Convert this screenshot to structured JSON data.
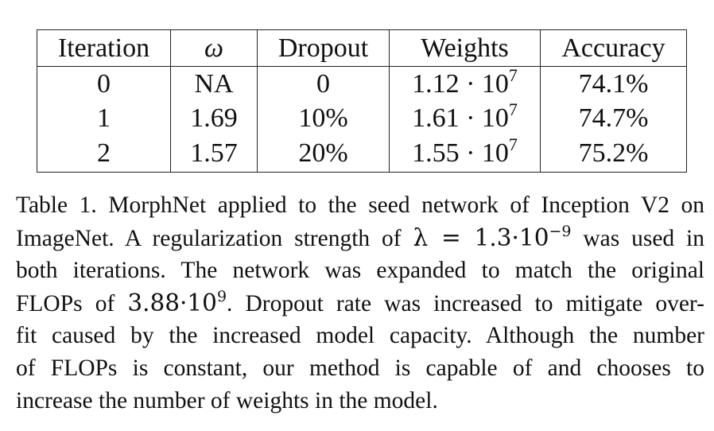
{
  "table": {
    "headers": [
      "Iteration",
      "ω",
      "Dropout",
      "Weights",
      "Accuracy"
    ],
    "rows": [
      {
        "iteration": "0",
        "omega": "NA",
        "dropout": "0",
        "weights_mantissa": "1.12 · 10",
        "weights_exp": "7",
        "accuracy": "74.1%"
      },
      {
        "iteration": "1",
        "omega": "1.69",
        "dropout": "10%",
        "weights_mantissa": "1.61 · 10",
        "weights_exp": "7",
        "accuracy": "74.7%"
      },
      {
        "iteration": "2",
        "omega": "1.57",
        "dropout": "20%",
        "weights_mantissa": "1.55 · 10",
        "weights_exp": "7",
        "accuracy": "75.2%"
      }
    ]
  },
  "caption": {
    "line1": "Table 1. MorphNet applied to the seed network of Inception V2 on",
    "line2_a": "ImageNet. A regularization strength of ",
    "line2_math": "λ = 1.3·10",
    "line2_exp": "−9",
    "line2_b": " was used in",
    "line3": "both iterations. The network was expanded to match the original",
    "line4_a": "FLOPs of ",
    "line4_math": "3.88·10",
    "line4_exp": "9",
    "line4_b": ". Dropout rate was increased to mitigate over-",
    "line5": "fit caused by the increased model capacity. Although the number",
    "line6": "of FLOPs is constant, our method is capable of and chooses to",
    "line7": "increase the number of weights in the model."
  }
}
